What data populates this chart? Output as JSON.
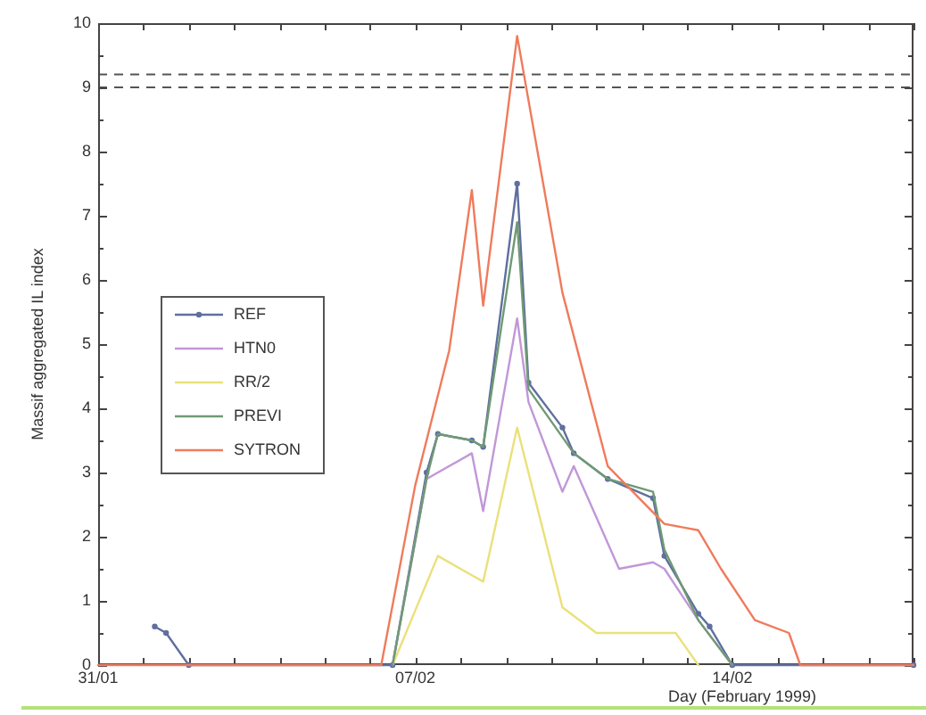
{
  "chart_data": {
    "type": "line",
    "xlabel": "Day (February 1999)",
    "ylabel": "Massif aggregated IL index",
    "legend": "left",
    "xlim": [
      "1999-01-31",
      "1999-02-18"
    ],
    "xticks": [
      {
        "value": "1999-01-31",
        "label": "31/01"
      },
      {
        "value": "1999-02-01",
        "label": null
      },
      {
        "value": "1999-02-02",
        "label": null
      },
      {
        "value": "1999-02-03",
        "label": null
      },
      {
        "value": "1999-02-04",
        "label": null
      },
      {
        "value": "1999-02-05",
        "label": null
      },
      {
        "value": "1999-02-06",
        "label": null
      },
      {
        "value": "1999-02-07",
        "label": "07/02"
      },
      {
        "value": "1999-02-08",
        "label": null
      },
      {
        "value": "1999-02-09",
        "label": null
      },
      {
        "value": "1999-02-10",
        "label": null
      },
      {
        "value": "1999-02-11",
        "label": null
      },
      {
        "value": "1999-02-12",
        "label": null
      },
      {
        "value": "1999-02-13",
        "label": null
      },
      {
        "value": "1999-02-14",
        "label": "14/02"
      },
      {
        "value": "1999-02-15",
        "label": null
      },
      {
        "value": "1999-02-16",
        "label": null
      },
      {
        "value": "1999-02-17",
        "label": null
      },
      {
        "value": "1999-02-18",
        "label": null
      }
    ],
    "ylim": [
      0,
      10
    ],
    "yticks": [
      0,
      {
        "value": 0.5,
        "label": null
      },
      1,
      {
        "value": 1.5,
        "label": null
      },
      2,
      {
        "value": 2.5,
        "label": null
      },
      3,
      {
        "value": 3.5,
        "label": null
      },
      4,
      {
        "value": 4.5,
        "label": null
      },
      5,
      {
        "value": 5.5,
        "label": null
      },
      6,
      {
        "value": 6.5,
        "label": null
      },
      7,
      {
        "value": 7.5,
        "label": null
      },
      8,
      {
        "value": 8.5,
        "label": null
      },
      9,
      {
        "value": 9.5,
        "label": null
      },
      10
    ],
    "ref_lines": [
      {
        "axis": "y",
        "value": 9.0,
        "color": "#555555",
        "line_style": "dashed"
      },
      {
        "axis": "y",
        "value": 9.2,
        "color": "#555555",
        "line_style": "dashed"
      }
    ],
    "series": [
      {
        "name": "REF",
        "color": "#5f6f9f",
        "marker": "circle",
        "x": [
          "1999-02-01T06:00",
          "1999-02-01T12:00",
          "1999-02-02",
          "1999-02-06T12:00",
          "1999-02-07T06:00",
          "1999-02-07T12:00",
          "1999-02-08T06:00",
          "1999-02-08T12:00",
          "1999-02-09T06:00",
          "1999-02-09T12:00",
          "1999-02-10T06:00",
          "1999-02-10T12:00",
          "1999-02-11T06:00",
          "1999-02-12T06:00",
          "1999-02-12T12:00",
          "1999-02-13T06:00",
          "1999-02-13T12:00",
          "1999-02-14",
          "1999-02-18"
        ],
        "values": [
          0.6,
          0.5,
          0,
          0,
          3.0,
          3.6,
          3.5,
          3.4,
          7.5,
          4.4,
          3.7,
          3.3,
          2.9,
          2.6,
          1.7,
          0.8,
          0.6,
          0,
          0
        ]
      },
      {
        "name": "HTN0",
        "color": "#c197d8",
        "x": [
          "1999-02-06T12:00",
          "1999-02-07T06:00",
          "1999-02-07T12:00",
          "1999-02-08T06:00",
          "1999-02-08T12:00",
          "1999-02-09T06:00",
          "1999-02-09T12:00",
          "1999-02-10T06:00",
          "1999-02-10T12:00",
          "1999-02-11T12:00",
          "1999-02-12T06:00",
          "1999-02-12T12:00",
          "1999-02-13T06:00",
          "1999-02-14"
        ],
        "values": [
          0,
          2.9,
          3.0,
          3.3,
          2.4,
          5.4,
          4.1,
          2.7,
          3.1,
          1.5,
          1.6,
          1.5,
          0.7,
          0
        ]
      },
      {
        "name": "RR/2",
        "color": "#ebe07a",
        "x": [
          "1999-02-06T12:00",
          "1999-02-07T12:00",
          "1999-02-08T06:00",
          "1999-02-08T12:00",
          "1999-02-09T06:00",
          "1999-02-09T18:00",
          "1999-02-10T06:00",
          "1999-02-11",
          "1999-02-12T18:00",
          "1999-02-13T06:00"
        ],
        "values": [
          0,
          1.7,
          1.4,
          1.3,
          3.7,
          2.3,
          0.9,
          0.5,
          0.5,
          0
        ]
      },
      {
        "name": "PREVI",
        "color": "#6f9a73",
        "x": [
          "1999-02-06T12:00",
          "1999-02-07T06:00",
          "1999-02-07T12:00",
          "1999-02-08T06:00",
          "1999-02-08T12:00",
          "1999-02-09T06:00",
          "1999-02-09T12:00",
          "1999-02-10T12:00",
          "1999-02-11T06:00",
          "1999-02-12T06:00",
          "1999-02-12T12:00",
          "1999-02-13T06:00",
          "1999-02-14"
        ],
        "values": [
          0,
          2.9,
          3.6,
          3.5,
          3.4,
          6.9,
          4.3,
          3.3,
          2.9,
          2.7,
          1.8,
          0.7,
          0
        ]
      },
      {
        "name": "SYTRON",
        "color": "#ef7b5c",
        "x": [
          "1999-01-31",
          "1999-02-06T06:00",
          "1999-02-07",
          "1999-02-07T18:00",
          "1999-02-08T06:00",
          "1999-02-08T12:00",
          "1999-02-09T06:00",
          "1999-02-10T06:00",
          "1999-02-11T06:00",
          "1999-02-12T12:00",
          "1999-02-13T06:00",
          "1999-02-13T18:00",
          "1999-02-14T12:00",
          "1999-02-15T06:00",
          "1999-02-15T12:00",
          "1999-02-18"
        ],
        "values": [
          0,
          0,
          2.8,
          4.9,
          7.4,
          5.6,
          9.8,
          5.8,
          3.1,
          2.2,
          2.1,
          1.5,
          0.7,
          0.5,
          0,
          0
        ]
      }
    ]
  }
}
